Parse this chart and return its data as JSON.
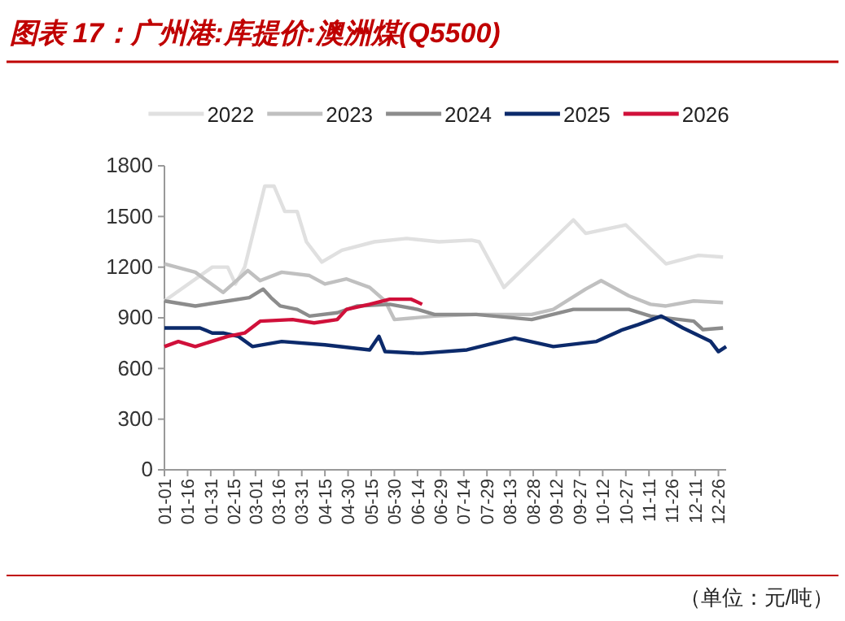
{
  "chart_data": {
    "type": "line",
    "title": "图表 17：广州港:库提价:澳洲煤(Q5500)",
    "annotations": [
      "（单位：元/吨）"
    ],
    "legend": "top",
    "grid": false,
    "line_style": "solid",
    "marker": "none",
    "xlim": [
      "--01-01",
      "--12-31"
    ],
    "xticks": [
      {
        "value": "--01-01",
        "label": "01-01"
      },
      {
        "value": "--01-16",
        "label": "01-16"
      },
      {
        "value": "--01-31",
        "label": "01-31"
      },
      {
        "value": "--02-15",
        "label": "02-15"
      },
      {
        "value": "--03-01",
        "label": "03-01"
      },
      {
        "value": "--03-16",
        "label": "03-16"
      },
      {
        "value": "--03-31",
        "label": "03-31"
      },
      {
        "value": "--04-15",
        "label": "04-15"
      },
      {
        "value": "--04-30",
        "label": "04-30"
      },
      {
        "value": "--05-15",
        "label": "05-15"
      },
      {
        "value": "--05-30",
        "label": "05-30"
      },
      {
        "value": "--06-14",
        "label": "06-14"
      },
      {
        "value": "--06-29",
        "label": "06-29"
      },
      {
        "value": "--07-14",
        "label": "07-14"
      },
      {
        "value": "--07-29",
        "label": "07-29"
      },
      {
        "value": "--08-13",
        "label": "08-13"
      },
      {
        "value": "--08-28",
        "label": "08-28"
      },
      {
        "value": "--09-12",
        "label": "09-12"
      },
      {
        "value": "--09-27",
        "label": "09-27"
      },
      {
        "value": "--10-12",
        "label": "10-12"
      },
      {
        "value": "--10-27",
        "label": "10-27"
      },
      {
        "value": "--11-11",
        "label": "11-11"
      },
      {
        "value": "--11-26",
        "label": "11-26"
      },
      {
        "value": "--12-11",
        "label": "12-11"
      },
      {
        "value": "--12-26",
        "label": "12-26"
      }
    ],
    "ylim": [
      0,
      1800
    ],
    "yticks": [
      0,
      300,
      600,
      900,
      1200,
      1500,
      1800
    ],
    "series": [
      {
        "name": "2022",
        "color": "#e0e0e0",
        "x": [
          "--01-01",
          "--02-01",
          "--02-11",
          "--02-16",
          "--02-22",
          "--03-07",
          "--03-13",
          "--03-20",
          "--03-28",
          "--04-03",
          "--04-13",
          "--04-26",
          "--05-17",
          "--06-07",
          "--06-28",
          "--07-19",
          "--07-24",
          "--08-09",
          "--09-23",
          "--10-01",
          "--10-27",
          "--11-22",
          "--12-13",
          "--12-29"
        ],
        "values": [
          1000,
          1200,
          1200,
          1100,
          1200,
          1680,
          1680,
          1530,
          1530,
          1350,
          1230,
          1300,
          1350,
          1370,
          1350,
          1360,
          1350,
          1080,
          1480,
          1400,
          1450,
          1220,
          1270,
          1260
        ]
      },
      {
        "name": "2023",
        "color": "#c0c0c0",
        "x": [
          "--01-01",
          "--01-21",
          "--02-08",
          "--02-18",
          "--02-24",
          "--03-04",
          "--03-18",
          "--04-05",
          "--04-15",
          "--04-29",
          "--05-14",
          "--05-24",
          "--05-30",
          "--06-25",
          "--07-22",
          "--08-27",
          "--09-10",
          "--10-01",
          "--10-11",
          "--10-29",
          "--11-12",
          "--11-22",
          "--12-10",
          "--12-29"
        ],
        "values": [
          1220,
          1170,
          1050,
          1130,
          1180,
          1120,
          1170,
          1150,
          1100,
          1130,
          1080,
          1000,
          890,
          910,
          920,
          920,
          950,
          1070,
          1120,
          1030,
          980,
          970,
          1000,
          990
        ]
      },
      {
        "name": "2024",
        "color": "#8c8c8c",
        "x": [
          "--01-01",
          "--01-21",
          "--02-11",
          "--02-25",
          "--03-06",
          "--03-11",
          "--03-17",
          "--03-28",
          "--04-05",
          "--04-23",
          "--05-06",
          "--05-27",
          "--06-14",
          "--06-25",
          "--07-22",
          "--08-27",
          "--09-23",
          "--10-29",
          "--11-12",
          "--12-10",
          "--12-16",
          "--12-29"
        ],
        "values": [
          1000,
          970,
          1000,
          1020,
          1070,
          1020,
          970,
          950,
          910,
          930,
          970,
          980,
          950,
          920,
          920,
          890,
          950,
          950,
          910,
          880,
          830,
          840
        ]
      },
      {
        "name": "2025",
        "color": "#0c2a6b",
        "x": [
          "--01-01",
          "--01-24",
          "--02-01",
          "--02-08",
          "--02-18",
          "--02-27",
          "--03-18",
          "--04-15",
          "--05-14",
          "--05-20",
          "--05-24",
          "--06-14",
          "--06-17",
          "--07-16",
          "--08-16",
          "--09-10",
          "--10-08",
          "--10-25",
          "--11-04",
          "--11-19",
          "--12-03",
          "--12-21",
          "--12-26",
          "--12-31"
        ],
        "values": [
          840,
          840,
          810,
          810,
          790,
          730,
          760,
          740,
          710,
          790,
          700,
          690,
          690,
          710,
          780,
          730,
          760,
          830,
          860,
          910,
          840,
          760,
          700,
          730
        ]
      },
      {
        "name": "2026",
        "color": "#d0103a",
        "x": [
          "--01-01",
          "--01-10",
          "--01-21",
          "--02-11",
          "--02-22",
          "--03-04",
          "--03-25",
          "--04-08",
          "--04-23",
          "--04-29",
          "--05-14",
          "--05-27",
          "--06-10",
          "--06-17"
        ],
        "values": [
          730,
          760,
          730,
          790,
          810,
          880,
          890,
          870,
          890,
          950,
          980,
          1010,
          1010,
          980
        ]
      }
    ]
  }
}
